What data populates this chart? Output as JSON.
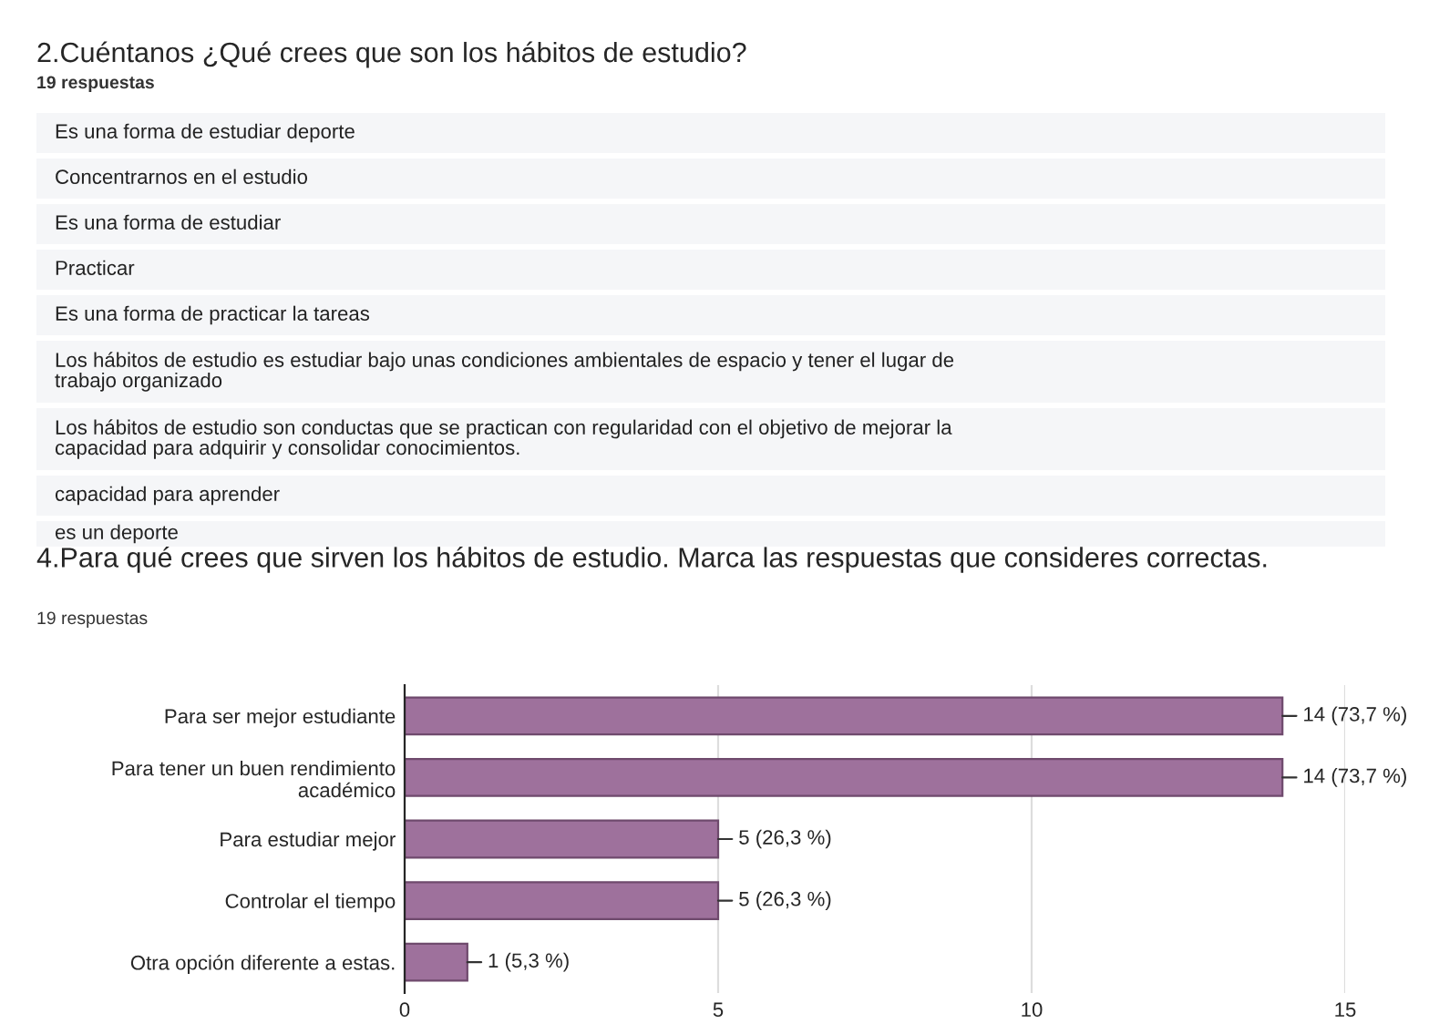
{
  "chart_data": {
    "type": "bar",
    "orientation": "horizontal",
    "title": "4.Para qué crees que sirven los hábitos de estudio. Marca las respuestas que consideres correctas.",
    "subtitle": "19 respuestas",
    "categories": [
      "Para ser mejor estudiante",
      "Para tener un buen rendimiento\nacadémico",
      "Para estudiar mejor",
      "Controlar el tiempo",
      "Otra opción diferente a estas."
    ],
    "values": [
      14,
      14,
      5,
      5,
      1
    ],
    "value_labels": [
      "14 (73,7 %)",
      "14 (73,7 %)",
      "5 (26,3 %)",
      "5 (26,3 %)",
      "1 (5,3 %)"
    ],
    "color": "#9e719c",
    "xlim": [
      0,
      15
    ],
    "xticks": [
      0,
      5,
      10,
      15
    ],
    "grid": "x",
    "annotations": [
      "2.Cuéntanos ¿Qué crees que son los hábitos de estudio?",
      "19 respuestas",
      "Es una forma de estudiar deporte",
      "Concentrarnos en el estudio",
      "Es una forma de estudiar",
      "Practicar",
      "Es una forma de practicar la tareas",
      "Los hábitos de estudio es estudiar bajo unas condiciones ambientales de espacio y tener el lugar de\ntrabajo organizado",
      "Los hábitos de estudio son conductas que se practican con regularidad con el objetivo de mejorar la\ncapacidad para adquirir y consolidar conocimientos.",
      "capacidad para aprender",
      "es un deporte"
    ]
  }
}
